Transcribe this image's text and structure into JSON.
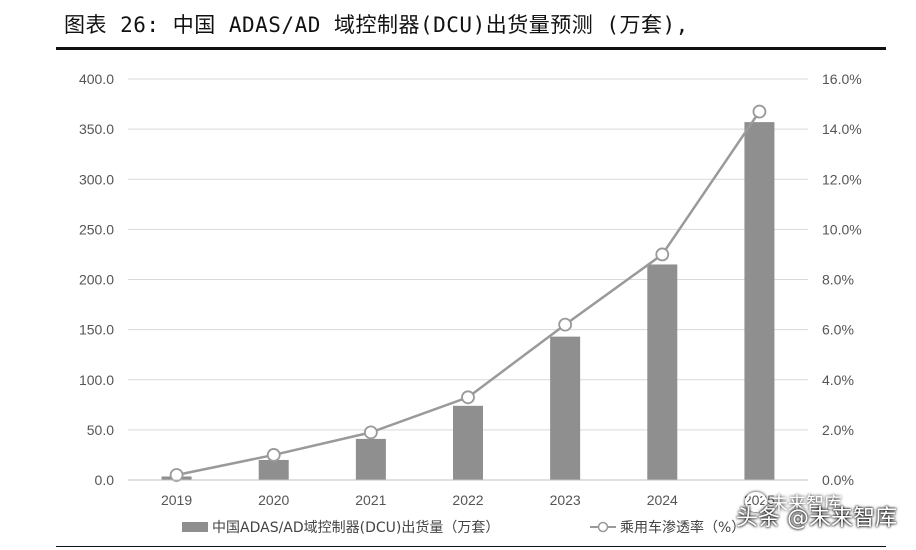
{
  "header": {
    "title": "图表 26: 中国 ADAS/AD 域控制器(DCU)出货量预测 (万套),"
  },
  "chart_data": {
    "type": "bar",
    "categories": [
      "2019",
      "2020",
      "2021",
      "2022",
      "2023",
      "2024",
      "2025"
    ],
    "series": [
      {
        "name": "中国ADAS/AD域控制器(DCU)出货量（万套）",
        "type": "bar",
        "axis": "left",
        "values": [
          3.5,
          20,
          41,
          74,
          143,
          215,
          357
        ]
      },
      {
        "name": "乘用车渗透率（%）",
        "type": "line",
        "axis": "right",
        "values": [
          0.2,
          1.0,
          1.9,
          3.3,
          6.2,
          9.0,
          14.7
        ]
      }
    ],
    "y_left": {
      "range": [
        0,
        400
      ],
      "ticks": [
        "0.0",
        "50.0",
        "100.0",
        "150.0",
        "200.0",
        "250.0",
        "300.0",
        "350.0",
        "400.0"
      ]
    },
    "y_right": {
      "range": [
        0,
        16
      ],
      "ticks": [
        "0.0%",
        "2.0%",
        "4.0%",
        "6.0%",
        "8.0%",
        "10.0%",
        "12.0%",
        "14.0%",
        "16.0%"
      ]
    },
    "grid": true,
    "legend_position": "bottom",
    "colors": {
      "bar": "#8f8f8f",
      "line": "#9a9a9a",
      "marker_fill": "#ffffff",
      "grid": "#d9d9d9"
    }
  },
  "watermark": {
    "line1": "未来智库",
    "line2": "头条 @未来智库"
  }
}
